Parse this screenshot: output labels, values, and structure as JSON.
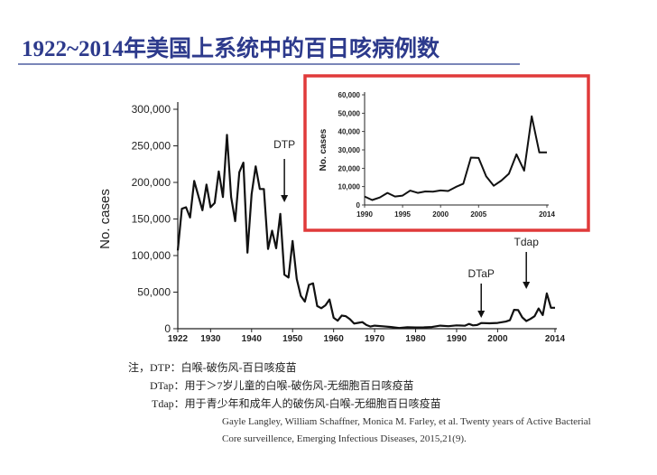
{
  "slide": {
    "title": "1922~2014年美国上系统中的百日咳病例数"
  },
  "notes": {
    "line1": "注，DTP：白喉-破伤风-百日咳疫苗",
    "line2": "DTap：用于＞7岁儿童的白喉-破伤风-无细胞百日咳疫苗",
    "line3": "Tdap：用于青少年和成年人的破伤风-白喉-无细胞百日咳疫苗"
  },
  "citation": {
    "line1": "Gayle Langley, William Schaffner, Monica M. Farley, et al. Twenty years of Active Bacterial",
    "line2": "Core surveillence, Emerging  Infectious        Diseases, 2015,21(9)."
  },
  "colors": {
    "line": "#111111",
    "highlight_box": "#e03a3a",
    "title": "#2d3a8c"
  },
  "chart_data": [
    {
      "type": "line",
      "title": "",
      "xlabel": "",
      "ylabel": "No. cases",
      "xlim": [
        1922,
        2014
      ],
      "ylim": [
        0,
        300000
      ],
      "x_ticks": [
        "1922",
        "1930",
        "1940",
        "1950",
        "1960",
        "1970",
        "1980",
        "1990",
        "2000",
        "2014"
      ],
      "y_ticks": [
        "0",
        "50,000",
        "100,000",
        "150,000",
        "200,000",
        "250,000",
        "300,000"
      ],
      "annotations": [
        {
          "label": "DTP",
          "x": 1948
        },
        {
          "label": "DTaP",
          "x": 1996
        },
        {
          "label": "Tdap",
          "x": 2007
        }
      ],
      "series": [
        {
          "x": [
            1922,
            1923,
            1924,
            1925,
            1926,
            1927,
            1928,
            1929,
            1930,
            1931,
            1932,
            1933,
            1934,
            1935,
            1936,
            1937,
            1938,
            1939,
            1940,
            1941,
            1942,
            1943,
            1944,
            1945,
            1946,
            1947,
            1948,
            1949,
            1950,
            1951,
            1952,
            1953,
            1954,
            1955,
            1956,
            1957,
            1958,
            1959,
            1960,
            1961,
            1962,
            1963,
            1964,
            1965,
            1966,
            1967,
            1968,
            1969,
            1970,
            1972,
            1974,
            1976,
            1978,
            1980,
            1982,
            1984,
            1986,
            1988,
            1990,
            1992,
            1993,
            1994,
            1995,
            1996,
            1998,
            2000,
            2002,
            2003,
            2004,
            2005,
            2006,
            2007,
            2008,
            2009,
            2010,
            2011,
            2012,
            2013,
            2014
          ],
          "y": [
            107000,
            164000,
            166000,
            152000,
            202000,
            182000,
            162000,
            197000,
            166000,
            172000,
            215000,
            180000,
            265000,
            180000,
            147000,
            214000,
            227000,
            104000,
            184000,
            222000,
            191000,
            191000,
            109000,
            134000,
            110000,
            157000,
            74000,
            70000,
            120000,
            68000,
            45000,
            37000,
            60000,
            62000,
            31000,
            28000,
            32000,
            40000,
            15000,
            11000,
            18000,
            17000,
            13000,
            7000,
            8000,
            9000,
            5000,
            3000,
            4200,
            3300,
            2400,
            1000,
            2100,
            1700,
            1900,
            2300,
            4200,
            3500,
            4600,
            4100,
            6600,
            4600,
            5100,
            7800,
            7400,
            7900,
            9800,
            11600,
            25800,
            25600,
            15600,
            10500,
            13300,
            17000,
            27600,
            18700,
            48300,
            28600,
            28600
          ]
        }
      ]
    },
    {
      "type": "line",
      "title": "",
      "xlabel": "",
      "ylabel": "No. cases",
      "xlim": [
        1990,
        2014
      ],
      "ylim": [
        0,
        60000
      ],
      "x_ticks": [
        "1990",
        "1995",
        "2000",
        "2005",
        "2014"
      ],
      "y_ticks": [
        "0",
        "10,000",
        "20,000",
        "30,000",
        "40,000",
        "50,000",
        "60,000"
      ],
      "series": [
        {
          "x": [
            1990,
            1991,
            1992,
            1993,
            1994,
            1995,
            1996,
            1997,
            1998,
            1999,
            2000,
            2001,
            2002,
            2003,
            2004,
            2005,
            2006,
            2007,
            2008,
            2009,
            2010,
            2011,
            2012,
            2013,
            2014
          ],
          "y": [
            4600,
            2700,
            4100,
            6600,
            4600,
            5100,
            7800,
            6600,
            7400,
            7300,
            7900,
            7600,
            9800,
            11600,
            25800,
            25600,
            15600,
            10500,
            13300,
            17000,
            27600,
            18700,
            48300,
            28600,
            28600
          ]
        }
      ]
    }
  ]
}
